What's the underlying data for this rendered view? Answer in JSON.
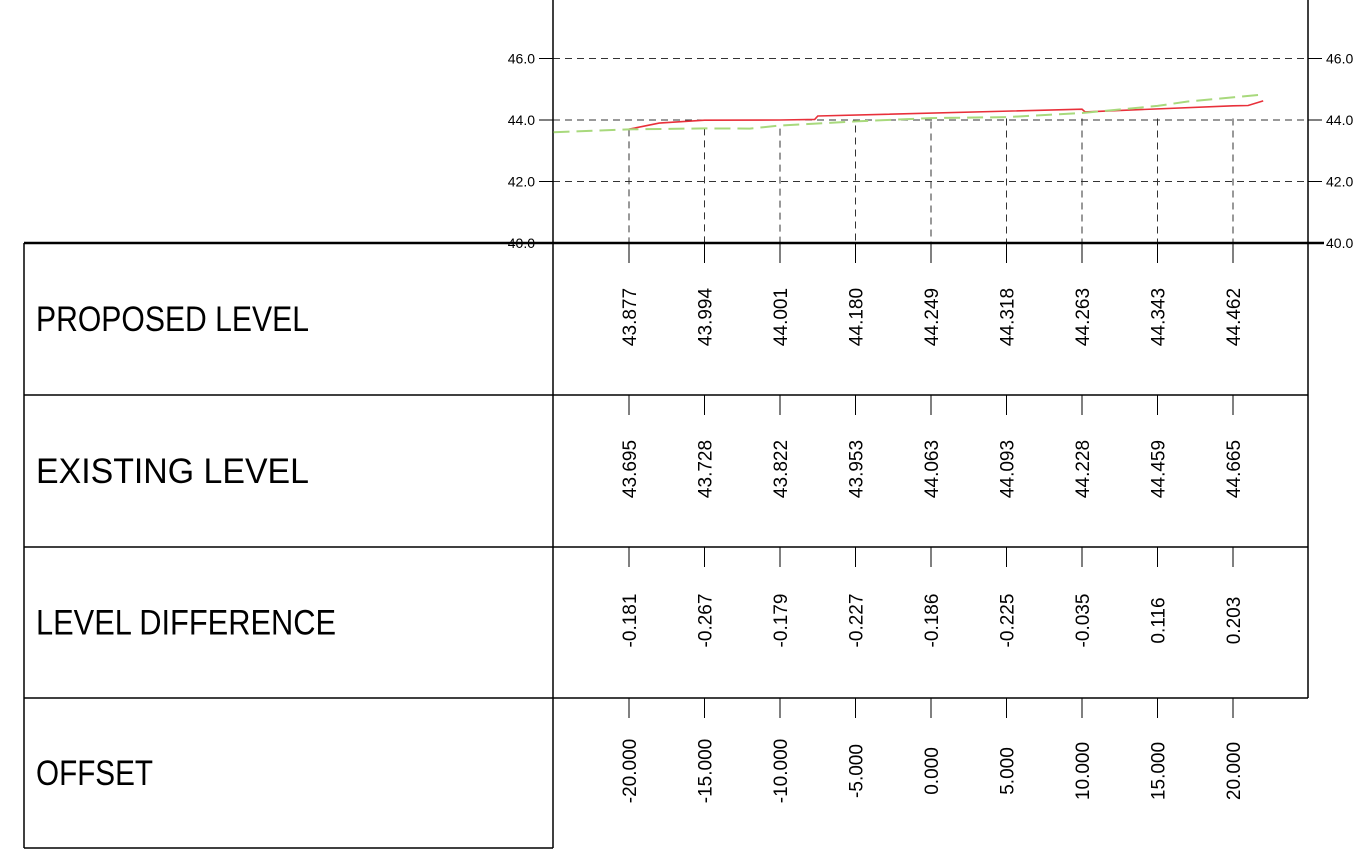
{
  "chart_data": {
    "type": "line",
    "title": "",
    "xlabel": "OFFSET",
    "ylabel": "",
    "ylim": [
      40.0,
      47.5
    ],
    "y_ticks": [
      "40.0",
      "42.0",
      "44.0",
      "46.0"
    ],
    "grid": "dashed at y-ticks and station offsets",
    "series": [
      {
        "color": "#e8303a",
        "style": "solid",
        "x": [
          -20.0,
          -18.0,
          -15.0,
          -10.0,
          -7.7,
          -7.5,
          10.0,
          10.2,
          20.0,
          21.0,
          22.0
        ],
        "y": [
          43.7,
          43.9,
          43.994,
          44.001,
          44.02,
          44.13,
          44.35,
          44.263,
          44.462,
          44.47,
          44.62
        ]
      },
      {
        "color": "#a8d97c",
        "style": "dashed",
        "x": [
          -25.0,
          -20.0,
          -15.0,
          -12.0,
          -10.0,
          -5.0,
          0.0,
          5.0,
          10.0,
          15.0,
          17.0,
          22.0
        ],
        "y": [
          43.6,
          43.695,
          43.728,
          43.72,
          43.822,
          43.953,
          44.063,
          44.093,
          44.228,
          44.459,
          44.6,
          44.83
        ]
      }
    ],
    "stations": [
      -20.0,
      -15.0,
      -10.0,
      -5.0,
      0.0,
      5.0,
      10.0,
      15.0,
      20.0
    ],
    "rows": [
      {
        "label": "PROPOSED LEVEL",
        "values": [
          "43.877",
          "43.994",
          "44.001",
          "44.180",
          "44.249",
          "44.318",
          "44.263",
          "44.343",
          "44.462"
        ]
      },
      {
        "label": "EXISTING LEVEL",
        "values": [
          "43.695",
          "43.728",
          "43.822",
          "43.953",
          "44.063",
          "44.093",
          "44.228",
          "44.459",
          "44.665"
        ]
      },
      {
        "label": "LEVEL DIFFERENCE",
        "values": [
          "-0.181",
          "-0.267",
          "-0.179",
          "-0.227",
          "-0.186",
          "-0.225",
          "-0.035",
          "0.116",
          "0.203"
        ]
      },
      {
        "label": "OFFSET",
        "values": [
          "-20.000",
          "-15.000",
          "-10.000",
          "-5.000",
          "0.000",
          "5.000",
          "10.000",
          "15.000",
          "20.000"
        ]
      }
    ]
  }
}
